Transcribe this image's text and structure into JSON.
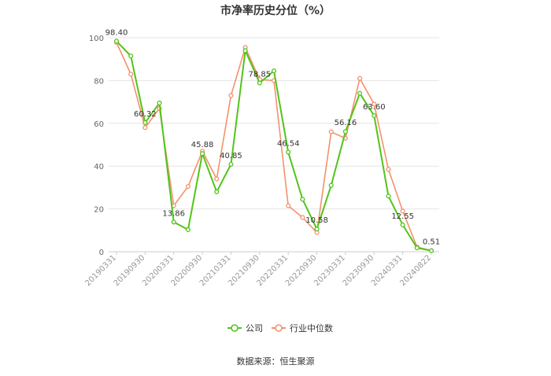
{
  "chart_data": {
    "type": "line",
    "title": "市净率历史分位（%）",
    "source": "数据来源：恒生聚源",
    "ylim": [
      0,
      100
    ],
    "yticks": [
      0,
      20,
      40,
      60,
      80,
      100
    ],
    "grid": true,
    "legend_position": "bottom",
    "x_tick_labels": [
      "20190331",
      "20190930",
      "20200331",
      "20200930",
      "20210331",
      "20210930",
      "20220331",
      "20220930",
      "20230331",
      "20230930",
      "20240331",
      "20240822"
    ],
    "series": [
      {
        "name": "公司",
        "color": "#52c41a",
        "values": [
          98.4,
          91.5,
          60.32,
          69.5,
          13.86,
          10.3,
          45.88,
          28.0,
          40.85,
          94.0,
          78.85,
          84.5,
          46.54,
          24.5,
          10.58,
          31.0,
          56.16,
          74.0,
          63.6,
          26.0,
          12.55,
          1.8,
          0.51
        ]
      },
      {
        "name": "行业中位数",
        "color": "#f4916d",
        "values": [
          97.8,
          83.0,
          58.0,
          67.0,
          21.5,
          30.5,
          47.0,
          34.0,
          73.0,
          95.5,
          80.5,
          80.0,
          21.5,
          16.0,
          9.0,
          56.0,
          53.0,
          81.0,
          69.0,
          38.5,
          19.0,
          2.2,
          0.5
        ]
      }
    ],
    "data_labels": [
      {
        "series": 0,
        "index": 0,
        "text": "98.40"
      },
      {
        "series": 0,
        "index": 2,
        "text": "60.32"
      },
      {
        "series": 0,
        "index": 4,
        "text": "13.86"
      },
      {
        "series": 0,
        "index": 6,
        "text": "45.88"
      },
      {
        "series": 0,
        "index": 8,
        "text": "40.85"
      },
      {
        "series": 0,
        "index": 10,
        "text": "78.85"
      },
      {
        "series": 0,
        "index": 12,
        "text": "46.54"
      },
      {
        "series": 0,
        "index": 14,
        "text": "10.58"
      },
      {
        "series": 0,
        "index": 16,
        "text": "56.16"
      },
      {
        "series": 0,
        "index": 18,
        "text": "63.60"
      },
      {
        "series": 0,
        "index": 20,
        "text": "12.55"
      },
      {
        "series": 0,
        "index": 22,
        "text": "0.51"
      }
    ]
  }
}
